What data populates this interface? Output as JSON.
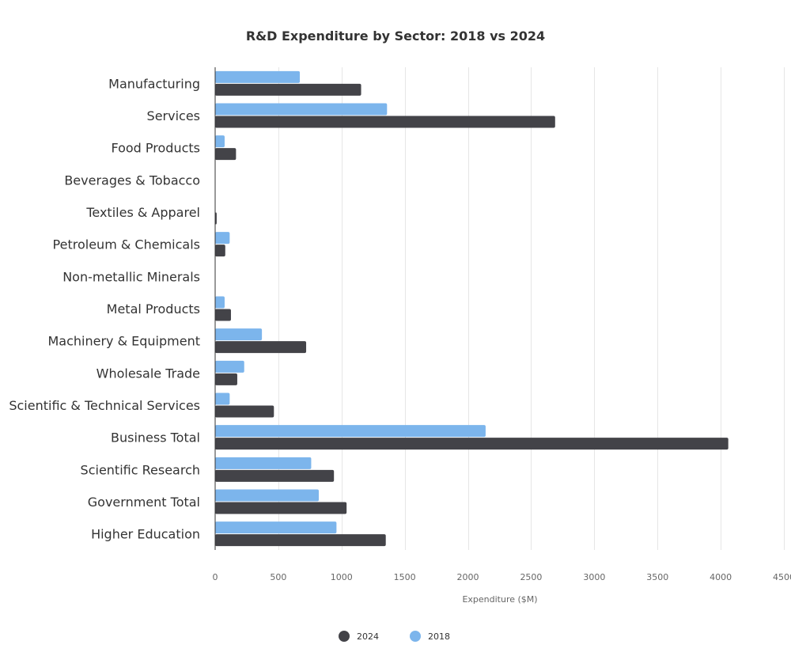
{
  "chart_data": {
    "type": "bar",
    "orientation": "horizontal",
    "title": "R&D Expenditure by Sector: 2018 vs 2024",
    "xlabel": "Expenditure ($M)",
    "ylabel": "",
    "xlim": [
      0,
      4500
    ],
    "x_ticks": [
      0,
      500,
      1000,
      1500,
      2000,
      2500,
      3000,
      3500,
      4000,
      4500
    ],
    "grid": true,
    "legend_position": "bottom",
    "categories": [
      "Manufacturing",
      "Services",
      "Food Products",
      "Beverages & Tobacco",
      "Textiles & Apparel",
      "Petroleum & Chemicals",
      "Non-metallic Minerals",
      "Metal Products",
      "Machinery & Equipment",
      "Wholesale Trade",
      "Scientific & Technical Services",
      "Business Total",
      "Scientific Research",
      "Government Total",
      "Higher Education"
    ],
    "series": [
      {
        "name": "2018",
        "color": "#7cb5ec",
        "values": [
          670,
          1360,
          75,
          0,
          0,
          115,
          0,
          75,
          370,
          230,
          115,
          2140,
          760,
          820,
          960
        ]
      },
      {
        "name": "2024",
        "color": "#434348",
        "values": [
          1155,
          2690,
          165,
          0,
          12,
          80,
          0,
          125,
          720,
          175,
          465,
          4060,
          940,
          1040,
          1350
        ]
      }
    ],
    "legend": [
      {
        "name": "2024",
        "color": "#434348"
      },
      {
        "name": "2018",
        "color": "#7cb5ec"
      }
    ]
  }
}
